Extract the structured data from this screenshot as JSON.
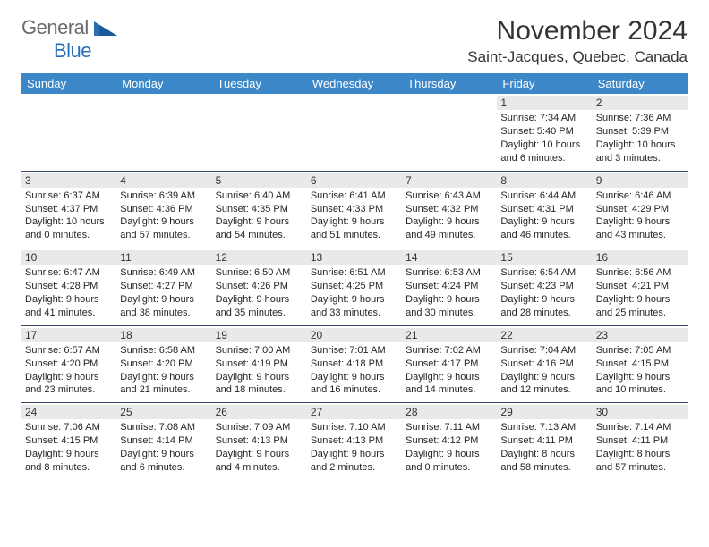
{
  "logo": {
    "word1": "General",
    "word2": "Blue"
  },
  "title": "November 2024",
  "location": "Saint-Jacques, Quebec, Canada",
  "colors": {
    "header_bg": "#3b87c8",
    "header_text": "#ffffff",
    "daynum_bg": "#e9e9e9",
    "week_border": "#3b4a6b",
    "logo_gray": "#6b6b6b",
    "logo_blue": "#2b6fb3",
    "text": "#333333"
  },
  "day_headers": [
    "Sunday",
    "Monday",
    "Tuesday",
    "Wednesday",
    "Thursday",
    "Friday",
    "Saturday"
  ],
  "weeks": [
    [
      {
        "empty": true
      },
      {
        "empty": true
      },
      {
        "empty": true
      },
      {
        "empty": true
      },
      {
        "empty": true
      },
      {
        "n": "1",
        "sunrise": "Sunrise: 7:34 AM",
        "sunset": "Sunset: 5:40 PM",
        "daylight1": "Daylight: 10 hours",
        "daylight2": "and 6 minutes."
      },
      {
        "n": "2",
        "sunrise": "Sunrise: 7:36 AM",
        "sunset": "Sunset: 5:39 PM",
        "daylight1": "Daylight: 10 hours",
        "daylight2": "and 3 minutes."
      }
    ],
    [
      {
        "n": "3",
        "sunrise": "Sunrise: 6:37 AM",
        "sunset": "Sunset: 4:37 PM",
        "daylight1": "Daylight: 10 hours",
        "daylight2": "and 0 minutes."
      },
      {
        "n": "4",
        "sunrise": "Sunrise: 6:39 AM",
        "sunset": "Sunset: 4:36 PM",
        "daylight1": "Daylight: 9 hours",
        "daylight2": "and 57 minutes."
      },
      {
        "n": "5",
        "sunrise": "Sunrise: 6:40 AM",
        "sunset": "Sunset: 4:35 PM",
        "daylight1": "Daylight: 9 hours",
        "daylight2": "and 54 minutes."
      },
      {
        "n": "6",
        "sunrise": "Sunrise: 6:41 AM",
        "sunset": "Sunset: 4:33 PM",
        "daylight1": "Daylight: 9 hours",
        "daylight2": "and 51 minutes."
      },
      {
        "n": "7",
        "sunrise": "Sunrise: 6:43 AM",
        "sunset": "Sunset: 4:32 PM",
        "daylight1": "Daylight: 9 hours",
        "daylight2": "and 49 minutes."
      },
      {
        "n": "8",
        "sunrise": "Sunrise: 6:44 AM",
        "sunset": "Sunset: 4:31 PM",
        "daylight1": "Daylight: 9 hours",
        "daylight2": "and 46 minutes."
      },
      {
        "n": "9",
        "sunrise": "Sunrise: 6:46 AM",
        "sunset": "Sunset: 4:29 PM",
        "daylight1": "Daylight: 9 hours",
        "daylight2": "and 43 minutes."
      }
    ],
    [
      {
        "n": "10",
        "sunrise": "Sunrise: 6:47 AM",
        "sunset": "Sunset: 4:28 PM",
        "daylight1": "Daylight: 9 hours",
        "daylight2": "and 41 minutes."
      },
      {
        "n": "11",
        "sunrise": "Sunrise: 6:49 AM",
        "sunset": "Sunset: 4:27 PM",
        "daylight1": "Daylight: 9 hours",
        "daylight2": "and 38 minutes."
      },
      {
        "n": "12",
        "sunrise": "Sunrise: 6:50 AM",
        "sunset": "Sunset: 4:26 PM",
        "daylight1": "Daylight: 9 hours",
        "daylight2": "and 35 minutes."
      },
      {
        "n": "13",
        "sunrise": "Sunrise: 6:51 AM",
        "sunset": "Sunset: 4:25 PM",
        "daylight1": "Daylight: 9 hours",
        "daylight2": "and 33 minutes."
      },
      {
        "n": "14",
        "sunrise": "Sunrise: 6:53 AM",
        "sunset": "Sunset: 4:24 PM",
        "daylight1": "Daylight: 9 hours",
        "daylight2": "and 30 minutes."
      },
      {
        "n": "15",
        "sunrise": "Sunrise: 6:54 AM",
        "sunset": "Sunset: 4:23 PM",
        "daylight1": "Daylight: 9 hours",
        "daylight2": "and 28 minutes."
      },
      {
        "n": "16",
        "sunrise": "Sunrise: 6:56 AM",
        "sunset": "Sunset: 4:21 PM",
        "daylight1": "Daylight: 9 hours",
        "daylight2": "and 25 minutes."
      }
    ],
    [
      {
        "n": "17",
        "sunrise": "Sunrise: 6:57 AM",
        "sunset": "Sunset: 4:20 PM",
        "daylight1": "Daylight: 9 hours",
        "daylight2": "and 23 minutes."
      },
      {
        "n": "18",
        "sunrise": "Sunrise: 6:58 AM",
        "sunset": "Sunset: 4:20 PM",
        "daylight1": "Daylight: 9 hours",
        "daylight2": "and 21 minutes."
      },
      {
        "n": "19",
        "sunrise": "Sunrise: 7:00 AM",
        "sunset": "Sunset: 4:19 PM",
        "daylight1": "Daylight: 9 hours",
        "daylight2": "and 18 minutes."
      },
      {
        "n": "20",
        "sunrise": "Sunrise: 7:01 AM",
        "sunset": "Sunset: 4:18 PM",
        "daylight1": "Daylight: 9 hours",
        "daylight2": "and 16 minutes."
      },
      {
        "n": "21",
        "sunrise": "Sunrise: 7:02 AM",
        "sunset": "Sunset: 4:17 PM",
        "daylight1": "Daylight: 9 hours",
        "daylight2": "and 14 minutes."
      },
      {
        "n": "22",
        "sunrise": "Sunrise: 7:04 AM",
        "sunset": "Sunset: 4:16 PM",
        "daylight1": "Daylight: 9 hours",
        "daylight2": "and 12 minutes."
      },
      {
        "n": "23",
        "sunrise": "Sunrise: 7:05 AM",
        "sunset": "Sunset: 4:15 PM",
        "daylight1": "Daylight: 9 hours",
        "daylight2": "and 10 minutes."
      }
    ],
    [
      {
        "n": "24",
        "sunrise": "Sunrise: 7:06 AM",
        "sunset": "Sunset: 4:15 PM",
        "daylight1": "Daylight: 9 hours",
        "daylight2": "and 8 minutes."
      },
      {
        "n": "25",
        "sunrise": "Sunrise: 7:08 AM",
        "sunset": "Sunset: 4:14 PM",
        "daylight1": "Daylight: 9 hours",
        "daylight2": "and 6 minutes."
      },
      {
        "n": "26",
        "sunrise": "Sunrise: 7:09 AM",
        "sunset": "Sunset: 4:13 PM",
        "daylight1": "Daylight: 9 hours",
        "daylight2": "and 4 minutes."
      },
      {
        "n": "27",
        "sunrise": "Sunrise: 7:10 AM",
        "sunset": "Sunset: 4:13 PM",
        "daylight1": "Daylight: 9 hours",
        "daylight2": "and 2 minutes."
      },
      {
        "n": "28",
        "sunrise": "Sunrise: 7:11 AM",
        "sunset": "Sunset: 4:12 PM",
        "daylight1": "Daylight: 9 hours",
        "daylight2": "and 0 minutes."
      },
      {
        "n": "29",
        "sunrise": "Sunrise: 7:13 AM",
        "sunset": "Sunset: 4:11 PM",
        "daylight1": "Daylight: 8 hours",
        "daylight2": "and 58 minutes."
      },
      {
        "n": "30",
        "sunrise": "Sunrise: 7:14 AM",
        "sunset": "Sunset: 4:11 PM",
        "daylight1": "Daylight: 8 hours",
        "daylight2": "and 57 minutes."
      }
    ]
  ]
}
